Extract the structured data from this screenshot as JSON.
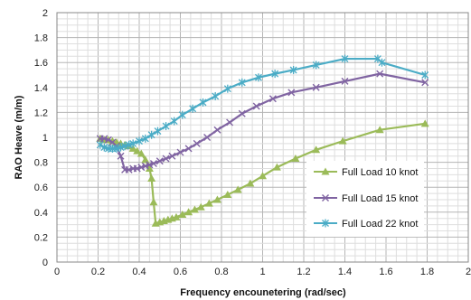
{
  "chart_data": {
    "type": "line",
    "xlabel": "Frequency encounetering (rad/sec)",
    "ylabel": "RAO Heave (m/m)",
    "xlim": [
      0,
      2
    ],
    "ylim": [
      0,
      2
    ],
    "x_ticks": [
      "0",
      "0.2",
      "0.4",
      "0.6",
      "0.8",
      "1",
      "1.2",
      "1.4",
      "1.6",
      "1.8",
      "2"
    ],
    "y_ticks": [
      "0",
      "0.2",
      "0.4",
      "0.6",
      "0.8",
      "1",
      "1.2",
      "1.4",
      "1.6",
      "1.8",
      "2"
    ],
    "grid": true,
    "legend_position": "lower-right",
    "series": [
      {
        "name": "Full Load 10 knot",
        "color": "#9bbb59",
        "marker": "triangle",
        "x": [
          0.21,
          0.23,
          0.25,
          0.27,
          0.29,
          0.31,
          0.33,
          0.35,
          0.37,
          0.39,
          0.41,
          0.43,
          0.45,
          0.46,
          0.47,
          0.48,
          0.5,
          0.52,
          0.54,
          0.56,
          0.58,
          0.61,
          0.64,
          0.67,
          0.7,
          0.74,
          0.78,
          0.83,
          0.88,
          0.94,
          1.0,
          1.07,
          1.16,
          1.26,
          1.39,
          1.57,
          1.79
        ],
        "y": [
          0.99,
          0.98,
          0.98,
          0.97,
          0.96,
          0.95,
          0.94,
          0.93,
          0.91,
          0.89,
          0.87,
          0.82,
          0.75,
          0.67,
          0.48,
          0.31,
          0.32,
          0.33,
          0.34,
          0.35,
          0.36,
          0.38,
          0.4,
          0.42,
          0.44,
          0.47,
          0.5,
          0.54,
          0.58,
          0.63,
          0.69,
          0.76,
          0.83,
          0.9,
          0.97,
          1.06,
          1.11
        ]
      },
      {
        "name": "Full Load 15 knot",
        "color": "#8064a2",
        "marker": "x",
        "x": [
          0.21,
          0.23,
          0.25,
          0.27,
          0.29,
          0.31,
          0.33,
          0.35,
          0.37,
          0.39,
          0.41,
          0.43,
          0.45,
          0.47,
          0.5,
          0.53,
          0.56,
          0.6,
          0.64,
          0.68,
          0.73,
          0.78,
          0.84,
          0.9,
          0.97,
          1.05,
          1.14,
          1.26,
          1.4,
          1.57,
          1.79
        ],
        "y": [
          0.99,
          0.99,
          0.98,
          0.96,
          0.93,
          0.85,
          0.74,
          0.74,
          0.75,
          0.75,
          0.76,
          0.77,
          0.78,
          0.79,
          0.81,
          0.83,
          0.85,
          0.88,
          0.91,
          0.95,
          1.0,
          1.06,
          1.12,
          1.19,
          1.25,
          1.31,
          1.36,
          1.4,
          1.45,
          1.51,
          1.44
        ]
      },
      {
        "name": "Full Load 22 knot",
        "color": "#4bacc6",
        "marker": "star",
        "x": [
          0.21,
          0.23,
          0.25,
          0.27,
          0.29,
          0.31,
          0.33,
          0.35,
          0.37,
          0.4,
          0.43,
          0.46,
          0.49,
          0.53,
          0.57,
          0.61,
          0.66,
          0.71,
          0.77,
          0.83,
          0.9,
          0.98,
          1.06,
          1.15,
          1.26,
          1.4,
          1.56,
          1.58,
          1.79
        ],
        "y": [
          0.94,
          0.92,
          0.91,
          0.91,
          0.91,
          0.92,
          0.93,
          0.94,
          0.95,
          0.97,
          0.99,
          1.02,
          1.05,
          1.09,
          1.13,
          1.18,
          1.23,
          1.28,
          1.33,
          1.39,
          1.44,
          1.48,
          1.51,
          1.54,
          1.58,
          1.63,
          1.63,
          1.6,
          1.5
        ]
      }
    ]
  }
}
